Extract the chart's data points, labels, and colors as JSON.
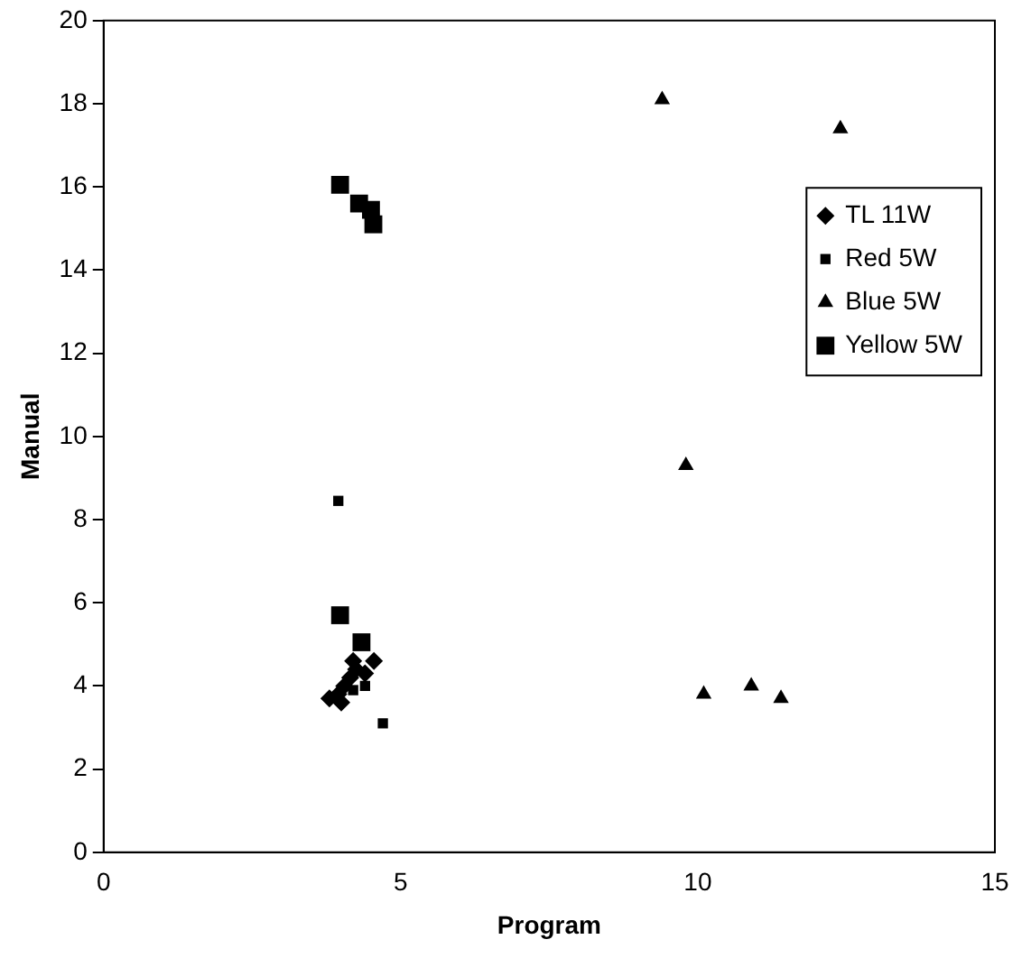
{
  "chart_data": {
    "type": "scatter",
    "xlabel": "Program",
    "ylabel": "Manual",
    "xlim": [
      0,
      15
    ],
    "ylim": [
      0,
      20
    ],
    "xticks": [
      0,
      5,
      10,
      15
    ],
    "yticks": [
      0,
      2,
      4,
      6,
      8,
      10,
      12,
      14,
      16,
      18,
      20
    ],
    "grid": false,
    "legend": "right",
    "series": [
      {
        "name": "TL 11W",
        "color": "#000000",
        "marker": "diamond",
        "x": [
          3.8,
          3.95,
          4.05,
          4.15,
          4.25,
          4.4,
          4.55,
          4.2,
          4.0
        ],
        "values": [
          3.7,
          3.8,
          4.0,
          4.2,
          4.4,
          4.3,
          4.6,
          4.6,
          3.6
        ]
      },
      {
        "name": "Red 5W",
        "color": "#000000",
        "marker": "square",
        "x": [
          3.95,
          4.7,
          4.2,
          4.4
        ],
        "values": [
          8.45,
          3.1,
          3.9,
          4.0
        ]
      },
      {
        "name": "Blue 5W",
        "color": "#000000",
        "marker": "triangle",
        "x": [
          9.4,
          12.4,
          9.8,
          10.1,
          10.9,
          11.4
        ],
        "values": [
          18.1,
          17.4,
          9.3,
          3.8,
          4.0,
          3.7
        ]
      },
      {
        "name": "Yellow 5W",
        "color": "#000000",
        "marker": "square",
        "x": [
          3.98,
          4.3,
          4.5,
          4.54,
          3.98,
          4.34
        ],
        "values": [
          16.05,
          15.6,
          15.45,
          15.1,
          5.7,
          5.05
        ]
      }
    ]
  }
}
